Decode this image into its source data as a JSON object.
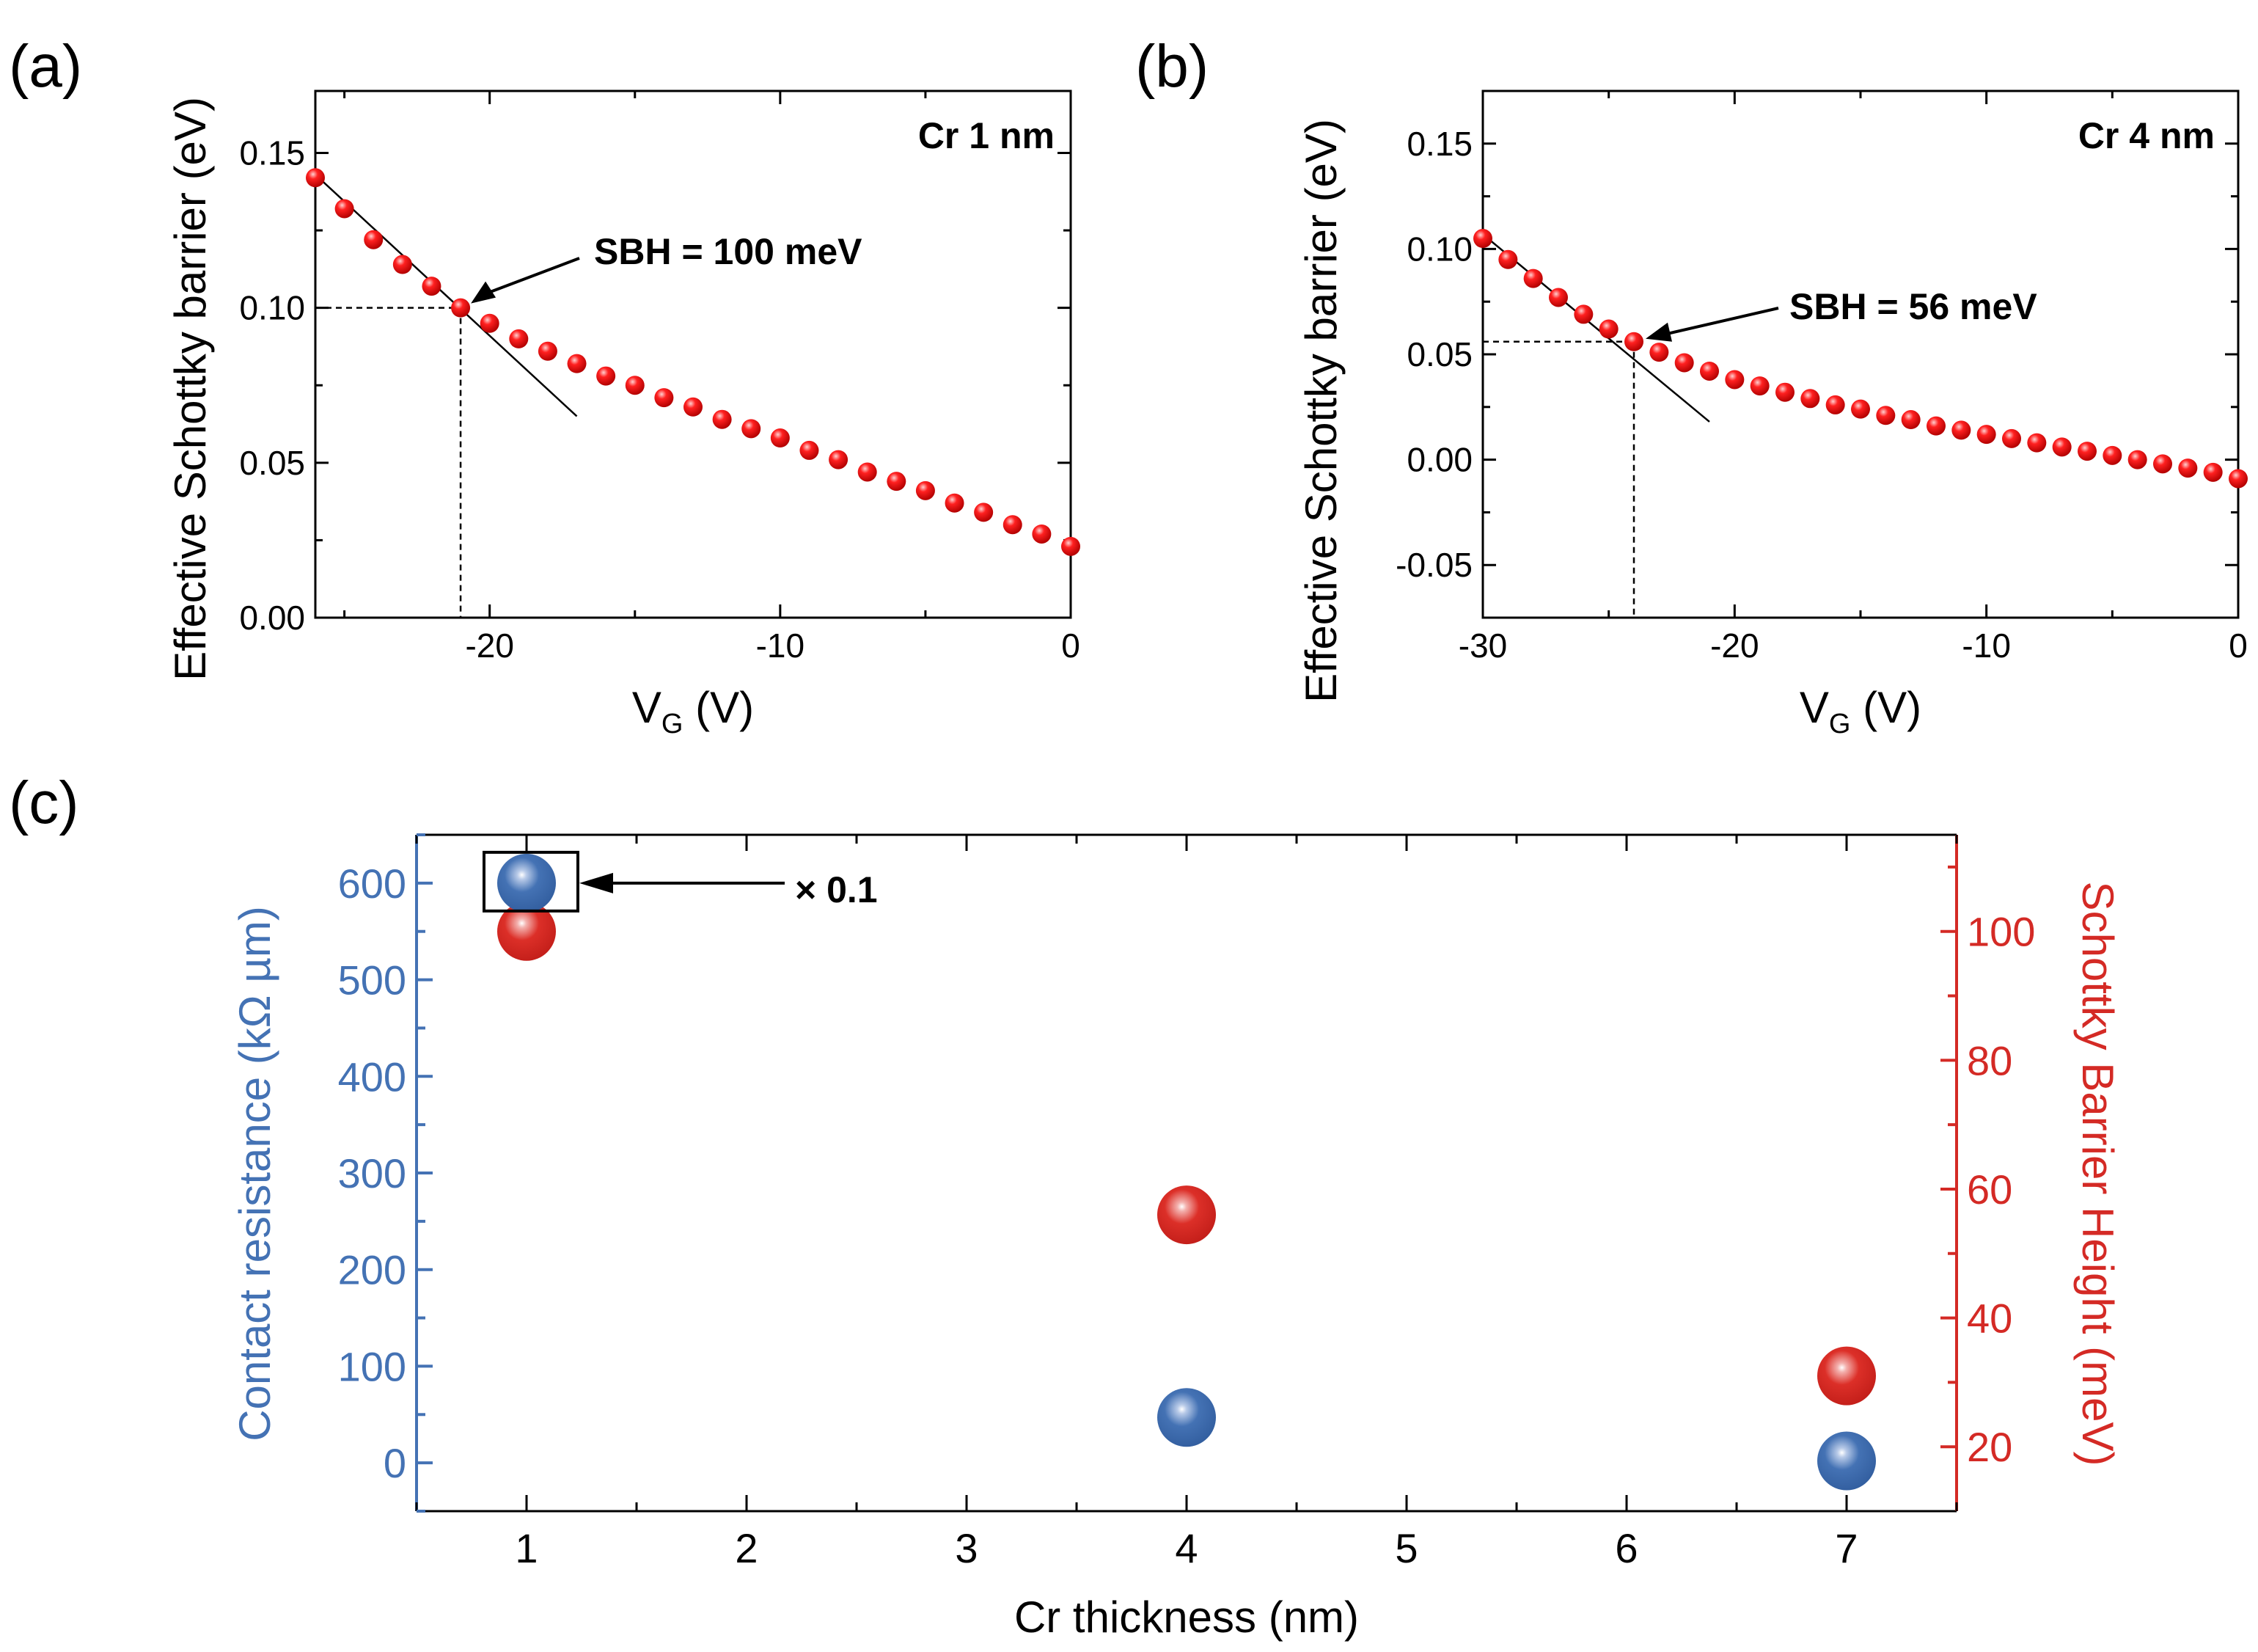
{
  "panels": [
    {
      "label": "(a)",
      "annotation": "Cr 1 nm",
      "sbh_label": "SBH = 100 meV",
      "xlabel_main": "V",
      "xlabel_sub": "G",
      "xlabel_unit": " (V)",
      "ylabel": "Effective Schottky barrier (eV)"
    },
    {
      "label": "(b)",
      "annotation": "Cr 4 nm",
      "sbh_label": "SBH = 56 meV",
      "xlabel_main": "V",
      "xlabel_sub": "G",
      "xlabel_unit": " (V)",
      "ylabel": "Effective Schottky barrier (eV)"
    },
    {
      "label": "(c)",
      "xlabel": "Cr thickness (nm)",
      "ylabel_left": "Contact resistance (kΩ µm)",
      "ylabel_right": "Schottky Barrier Height (meV)",
      "scale_note": "× 0.1"
    }
  ],
  "colors": {
    "blue": "#4472b4",
    "red": "#d42a25",
    "points_red": "#e01010"
  },
  "chart_data": [
    {
      "type": "scatter",
      "title": "Cr 1 nm",
      "xlabel": "VG (V)",
      "ylabel": "Effective Schottky barrier (eV)",
      "xlim": [
        -26,
        0
      ],
      "ylim": [
        0.0,
        0.17
      ],
      "xticks": [
        -20,
        -10,
        0
      ],
      "xtick_labels": [
        "-20",
        "-10",
        "0"
      ],
      "yticks": [
        0.0,
        0.05,
        0.1,
        0.15
      ],
      "ytick_labels": [
        "0.00",
        "0.05",
        "0.10",
        "0.15"
      ],
      "x": [
        -26,
        -25,
        -24,
        -23,
        -22,
        -21,
        -20,
        -19,
        -18,
        -17,
        -16,
        -15,
        -14,
        -13,
        -12,
        -11,
        -10,
        -9,
        -8,
        -7,
        -6,
        -5,
        -4,
        -3,
        -2,
        -1,
        0
      ],
      "y": [
        0.142,
        0.132,
        0.122,
        0.114,
        0.107,
        0.1,
        0.095,
        0.09,
        0.086,
        0.082,
        0.078,
        0.075,
        0.071,
        0.068,
        0.064,
        0.061,
        0.058,
        0.054,
        0.051,
        0.047,
        0.044,
        0.041,
        0.037,
        0.034,
        0.03,
        0.027,
        0.023
      ],
      "fit_line": {
        "x": [
          -26,
          -17
        ],
        "y": [
          0.143,
          0.065
        ]
      },
      "sbh": {
        "x": -21,
        "y": 0.1
      }
    },
    {
      "type": "scatter",
      "title": "Cr 4 nm",
      "xlabel": "VG (V)",
      "ylabel": "Effective Schottky barrier (eV)",
      "xlim": [
        -30,
        0
      ],
      "ylim": [
        -0.075,
        0.175
      ],
      "xticks": [
        -30,
        -20,
        -10,
        0
      ],
      "xtick_labels": [
        "-30",
        "-20",
        "-10",
        "0"
      ],
      "yticks": [
        -0.05,
        0.0,
        0.05,
        0.1,
        0.15
      ],
      "ytick_labels": [
        "-0.05",
        "0.00",
        "0.05",
        "0.10",
        "0.15"
      ],
      "x": [
        -30,
        -29,
        -28,
        -27,
        -26,
        -25,
        -24,
        -23,
        -22,
        -21,
        -20,
        -19,
        -18,
        -17,
        -16,
        -15,
        -14,
        -13,
        -12,
        -11,
        -10,
        -9,
        -8,
        -7,
        -6,
        -5,
        -4,
        -3,
        -2,
        -1,
        0
      ],
      "y": [
        0.105,
        0.095,
        0.086,
        0.077,
        0.069,
        0.062,
        0.056,
        0.051,
        0.046,
        0.042,
        0.038,
        0.035,
        0.032,
        0.029,
        0.026,
        0.024,
        0.021,
        0.019,
        0.016,
        0.014,
        0.012,
        0.01,
        0.008,
        0.006,
        0.004,
        0.002,
        0.0,
        -0.002,
        -0.004,
        -0.006,
        -0.009
      ],
      "fit_line": {
        "x": [
          -30,
          -21
        ],
        "y": [
          0.107,
          0.018
        ]
      },
      "sbh": {
        "x": -24,
        "y": 0.056
      }
    },
    {
      "type": "scatter",
      "xlabel": "Cr thickness (nm)",
      "xlim": [
        0.5,
        7.5
      ],
      "xticks": [
        1,
        2,
        3,
        4,
        5,
        6,
        7
      ],
      "xtick_labels": [
        "1",
        "2",
        "3",
        "4",
        "5",
        "6",
        "7"
      ],
      "series": [
        {
          "name": "Contact resistance (kΩ µm)",
          "axis": "left",
          "ylim": [
            -50,
            650
          ],
          "yticks": [
            0,
            100,
            200,
            300,
            400,
            500,
            600
          ],
          "ytick_labels": [
            "0",
            "100",
            "200",
            "300",
            "400",
            "500",
            "600"
          ],
          "x": [
            1,
            4,
            7
          ],
          "values": [
            600,
            47,
            2
          ]
        },
        {
          "name": "Schottky Barrier Height (meV)",
          "axis": "right",
          "ylim": [
            10,
            115
          ],
          "yticks": [
            20,
            40,
            60,
            80,
            100
          ],
          "ytick_labels": [
            "20",
            "40",
            "60",
            "80",
            "100"
          ],
          "x": [
            1,
            4,
            7
          ],
          "values": [
            100,
            56,
            31
          ]
        }
      ]
    }
  ]
}
